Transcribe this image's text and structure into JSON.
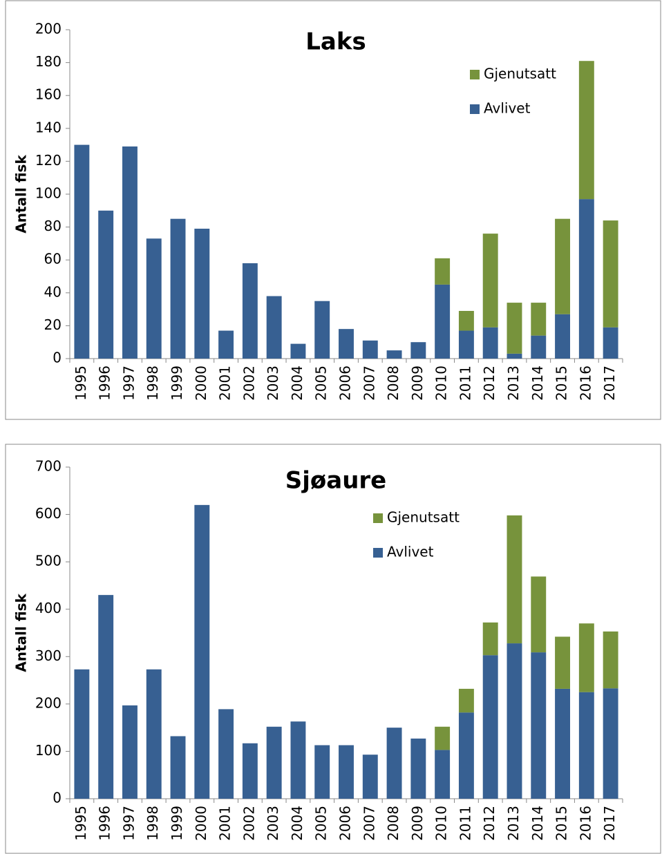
{
  "chart_data": [
    {
      "type": "stacked_bar",
      "title": "Laks",
      "y_label": "Antall fisk",
      "categories": [
        "1995",
        "1996",
        "1997",
        "1998",
        "1999",
        "2000",
        "2001",
        "2002",
        "2003",
        "2004",
        "2005",
        "2006",
        "2007",
        "2008",
        "2009",
        "2010",
        "2011",
        "2012",
        "2013",
        "2014",
        "2015",
        "2016",
        "2017"
      ],
      "series": [
        {
          "name": "Avlivet",
          "color": "#376092",
          "values": [
            130,
            90,
            129,
            73,
            85,
            79,
            17,
            58,
            38,
            9,
            35,
            18,
            11,
            5,
            10,
            45,
            17,
            19,
            3,
            14,
            27,
            97,
            19
          ]
        },
        {
          "name": "Gjenutsatt",
          "color": "#77933c",
          "values": [
            0,
            0,
            0,
            0,
            0,
            0,
            0,
            0,
            0,
            0,
            0,
            0,
            0,
            0,
            0,
            16,
            12,
            57,
            31,
            20,
            58,
            84,
            65
          ]
        }
      ],
      "ylim": [
        0,
        200
      ],
      "yticks": [
        0,
        20,
        40,
        60,
        80,
        100,
        120,
        140,
        160,
        180,
        200
      ]
    },
    {
      "type": "stacked_bar",
      "title": "Sjøaure",
      "y_label": "Antall fisk",
      "categories": [
        "1995",
        "1996",
        "1997",
        "1998",
        "1999",
        "2000",
        "2001",
        "2002",
        "2003",
        "2004",
        "2005",
        "2006",
        "2007",
        "2008",
        "2009",
        "2010",
        "2011",
        "2012",
        "2013",
        "2014",
        "2015",
        "2016",
        "2017"
      ],
      "series": [
        {
          "name": "Avlivet",
          "color": "#376092",
          "values": [
            273,
            430,
            197,
            273,
            132,
            620,
            189,
            117,
            152,
            163,
            113,
            113,
            93,
            150,
            127,
            103,
            182,
            303,
            328,
            309,
            232,
            225,
            233
          ]
        },
        {
          "name": "Gjenutsatt",
          "color": "#77933c",
          "values": [
            0,
            0,
            0,
            0,
            0,
            0,
            0,
            0,
            0,
            0,
            0,
            0,
            0,
            0,
            0,
            49,
            50,
            69,
            270,
            160,
            110,
            145,
            120
          ]
        }
      ],
      "ylim": [
        0,
        700
      ],
      "yticks": [
        0,
        100,
        200,
        300,
        400,
        500,
        600,
        700
      ]
    }
  ]
}
